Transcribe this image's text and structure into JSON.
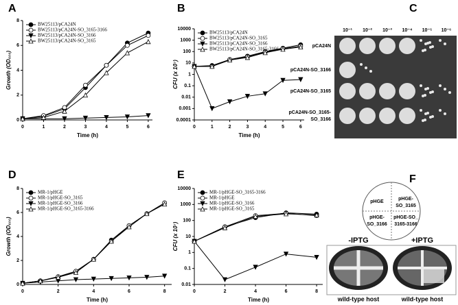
{
  "chart_data": [
    {
      "type": "line",
      "panel": "A",
      "xlabel": "Time (h)",
      "ylabel": "Growth (OD₆₀₀)",
      "x": [
        0,
        1,
        2,
        3,
        4,
        5,
        6
      ],
      "xlim": [
        0,
        6.2
      ],
      "xticks": [
        0,
        1,
        2,
        3,
        4,
        5,
        6
      ],
      "ylim": [
        0,
        8
      ],
      "yticks": [
        0,
        2,
        4,
        6,
        8
      ],
      "log_y": false,
      "legend": "upper left",
      "series": [
        {
          "name": "BW25113/pCA24N",
          "color": "#000000",
          "marker": "circle-filled",
          "values": [
            0.1,
            0.3,
            0.9,
            2.6,
            4.4,
            6.2,
            7.0
          ]
        },
        {
          "name": "BW25113/pCA24N-SO_3165-3166",
          "color": "#000000",
          "marker": "circle-open",
          "values": [
            0.1,
            0.35,
            1.0,
            2.8,
            4.4,
            6.0,
            6.8
          ]
        },
        {
          "name": "BW25113/pCA24N-SO_3166",
          "color": "#000000",
          "marker": "triangle-down-filled",
          "values": [
            0.1,
            0.1,
            0.1,
            0.15,
            0.2,
            0.25,
            0.35
          ]
        },
        {
          "name": "BW25113/pCA24N-SO_3165",
          "color": "#000000",
          "marker": "triangle-up-open",
          "values": [
            0.1,
            0.2,
            0.7,
            2.0,
            3.8,
            5.4,
            6.3
          ]
        }
      ]
    },
    {
      "type": "line",
      "panel": "B",
      "xlabel": "Time (h)",
      "ylabel": "CFU (x 10⁷)",
      "x": [
        0,
        1,
        2,
        3,
        4,
        5,
        6
      ],
      "xlim": [
        0,
        6.2
      ],
      "xticks": [
        0,
        1,
        2,
        3,
        4,
        5,
        6
      ],
      "ylim": [
        0.0001,
        10000
      ],
      "yticks": [
        0.0001,
        0.001,
        0.01,
        0.1,
        1,
        10,
        100,
        1000,
        10000
      ],
      "log_y": true,
      "legend": "upper left",
      "series": [
        {
          "name": "BW25113/pCA24N",
          "color": "#000000",
          "marker": "circle-filled",
          "values": [
            5,
            6,
            20,
            40,
            100,
            200,
            400
          ]
        },
        {
          "name": "BW25113/pCA24N-SO_3165",
          "color": "#000000",
          "marker": "circle-open",
          "values": [
            5,
            5,
            20,
            35,
            90,
            180,
            300
          ]
        },
        {
          "name": "BW25113/pCA24N-SO_3166",
          "color": "#000000",
          "marker": "triangle-down-filled",
          "values": [
            5,
            0.001,
            0.004,
            0.012,
            0.02,
            0.3,
            0.35
          ]
        },
        {
          "name": "BW25113/pCA24N-SO_3165-3166",
          "color": "#000000",
          "marker": "triangle-up-open",
          "values": [
            5,
            5,
            18,
            30,
            80,
            160,
            250
          ]
        }
      ]
    },
    {
      "type": "line",
      "panel": "D",
      "xlabel": "Time (h)",
      "ylabel": "Growth (OD₆₀₀)",
      "x": [
        0,
        1,
        2,
        3,
        4,
        5,
        6,
        7,
        8
      ],
      "xlim": [
        0,
        8.4
      ],
      "xticks": [
        0,
        2,
        4,
        6,
        8
      ],
      "ylim": [
        0,
        8
      ],
      "yticks": [
        0,
        2,
        4,
        6,
        8
      ],
      "log_y": false,
      "legend": "upper left",
      "series": [
        {
          "name": "MR-1/pHGE",
          "color": "#000000",
          "marker": "circle-filled",
          "values": [
            0.1,
            0.3,
            0.6,
            1.1,
            2.1,
            3.7,
            4.9,
            5.9,
            6.8
          ]
        },
        {
          "name": "MR-1/pHGE-SO_3165",
          "color": "#000000",
          "marker": "circle-open",
          "values": [
            0.1,
            0.3,
            0.65,
            1.1,
            2.1,
            3.6,
            4.9,
            5.9,
            6.8
          ]
        },
        {
          "name": "MR-1/pHGE-SO_3166",
          "color": "#000000",
          "marker": "triangle-down-filled",
          "values": [
            0.1,
            0.2,
            0.3,
            0.4,
            0.45,
            0.5,
            0.55,
            0.6,
            0.7
          ]
        },
        {
          "name": "MR-1/pHGE-SO_3165-3166",
          "color": "#000000",
          "marker": "triangle-up-open",
          "values": [
            0.1,
            0.3,
            0.6,
            1.0,
            2.1,
            3.6,
            4.8,
            5.9,
            6.7
          ]
        }
      ]
    },
    {
      "type": "line",
      "panel": "E",
      "xlabel": "Time (h)",
      "ylabel": "CFU (x 10⁷)",
      "x": [
        0,
        2,
        4,
        6,
        8
      ],
      "xlim": [
        0,
        8.4
      ],
      "xticks": [
        0,
        2,
        4,
        6,
        8
      ],
      "ylim": [
        0.01,
        10000
      ],
      "yticks": [
        0.01,
        0.1,
        1,
        10,
        100,
        1000,
        10000
      ],
      "log_y": true,
      "legend": "upper left",
      "series": [
        {
          "name": "MR-1/pHGE-SO_3165-3166",
          "color": "#000000",
          "marker": "circle-filled",
          "values": [
            5,
            40,
            150,
            300,
            250
          ]
        },
        {
          "name": "MR-1/pHGE",
          "color": "#000000",
          "marker": "circle-open",
          "values": [
            5,
            40,
            200,
            280,
            200
          ]
        },
        {
          "name": "MR-1/pHGE-SO_3166",
          "color": "#000000",
          "marker": "triangle-down-filled",
          "values": [
            5,
            0.02,
            0.12,
            0.8,
            0.5
          ]
        },
        {
          "name": "MR-1/pHGE-SO_3165",
          "color": "#000000",
          "marker": "triangle-up-open",
          "values": [
            5,
            35,
            180,
            260,
            220
          ]
        }
      ]
    }
  ],
  "plate_panel": {
    "letter": "C",
    "columns": [
      "10⁻¹",
      "10⁻²",
      "10⁻³",
      "10⁻⁴",
      "10⁻⁵",
      "10⁻⁶"
    ],
    "rows": [
      "pCA24N",
      "pCA24N-SO_3166",
      "pCA24N-SO_3165",
      [
        "pCA24N-SO_3165-",
        "SO_3166"
      ]
    ]
  },
  "induction_panel": {
    "letter": "F",
    "quadrants": [
      "pHGE",
      [
        "pHGE-",
        "SO_3165"
      ],
      [
        "pHGE-",
        "SO_3166"
      ],
      [
        "pHGE-SO_",
        "3165-3166"
      ]
    ],
    "plates": [
      {
        "condition": "-IPTG",
        "host": "wild-type host"
      },
      {
        "condition": "+IPTG",
        "host": "wild-type host"
      }
    ]
  }
}
